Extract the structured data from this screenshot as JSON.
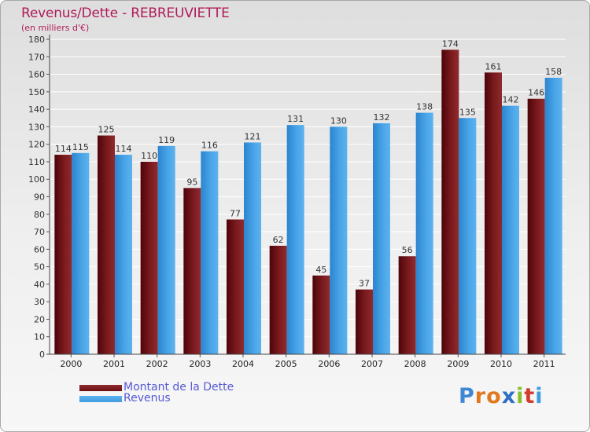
{
  "title": "Revenus/Dette - REBREUVIETTE",
  "subtitle": "(en milliers d'€)",
  "logo_text": "Proxiti",
  "colors": {
    "title": "#b01c5a",
    "dette": "#6b0f14",
    "revenus": "#3f9be0",
    "legend_text": "#5559d6"
  },
  "chart_data": {
    "type": "bar",
    "title": "Revenus/Dette - REBREUVIETTE",
    "subtitle": "(en milliers d'€)",
    "categories": [
      "2000",
      "2001",
      "2002",
      "2003",
      "2004",
      "2005",
      "2006",
      "2007",
      "2008",
      "2009",
      "2010",
      "2011"
    ],
    "series": [
      {
        "name": "Montant de la Dette",
        "values": [
          114,
          125,
          110,
          95,
          77,
          62,
          45,
          37,
          56,
          174,
          161,
          146
        ]
      },
      {
        "name": "Revenus",
        "values": [
          115,
          114,
          119,
          116,
          121,
          131,
          130,
          132,
          138,
          135,
          142,
          158
        ]
      }
    ],
    "ylim": [
      0,
      180
    ],
    "yticks": [
      0,
      10,
      20,
      30,
      40,
      50,
      60,
      70,
      80,
      90,
      100,
      110,
      120,
      130,
      140,
      150,
      160,
      170,
      180
    ],
    "grid": true,
    "legend_position": "bottom-left"
  }
}
